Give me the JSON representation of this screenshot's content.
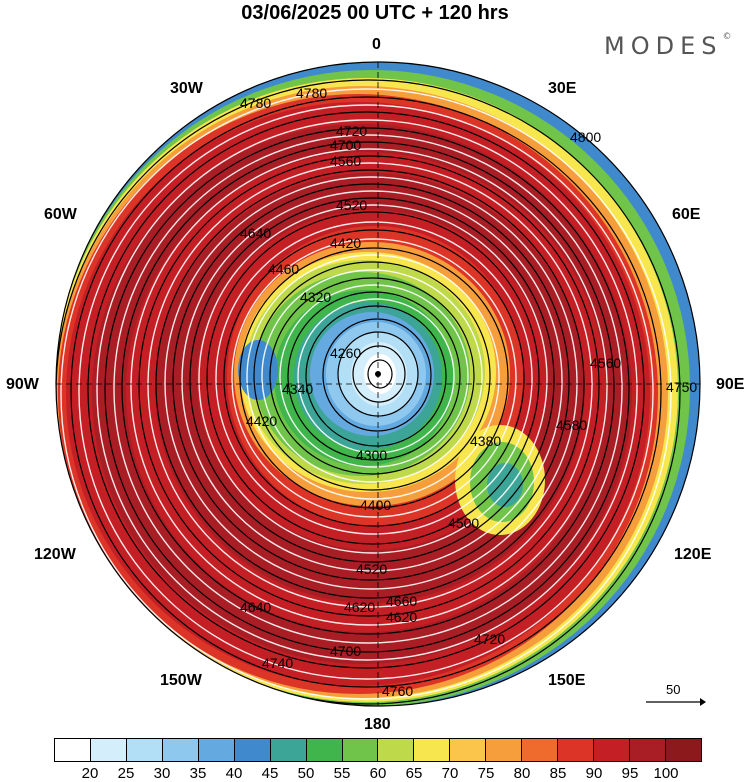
{
  "title": "03/06/2025  00 UTC  + 120 hrs",
  "brand": "MODES",
  "brand_mark": "©",
  "longitude_labels": {
    "n": "0",
    "e30": "30E",
    "e60": "60E",
    "e90": "90E",
    "e120": "120E",
    "e150": "150E",
    "s": "180",
    "w150": "150W",
    "w120": "120W",
    "w90": "90W",
    "w60": "60W",
    "w30": "30W"
  },
  "contour_labels": [
    "4780",
    "4780",
    "4720",
    "4700",
    "4640",
    "4620",
    "4560",
    "4520",
    "4460",
    "4420",
    "4380",
    "4320",
    "4260",
    "4300",
    "4340",
    "4400",
    "4420",
    "4500",
    "4520",
    "4560",
    "4580",
    "4620",
    "4640",
    "4660",
    "4700",
    "4720",
    "4740",
    "4750",
    "4760",
    "4800"
  ],
  "reference_vector": {
    "value": "50"
  },
  "colorbar": {
    "ticks": [
      "20",
      "25",
      "30",
      "35",
      "40",
      "45",
      "50",
      "55",
      "60",
      "65",
      "70",
      "75",
      "80",
      "85",
      "90",
      "95",
      "100"
    ],
    "colors": [
      "#ffffff",
      "#d4eefb",
      "#b3dff6",
      "#8ec8ee",
      "#64a9df",
      "#3f89cc",
      "#3ca597",
      "#3fb54b",
      "#6fc449",
      "#bed94a",
      "#f8e64e",
      "#fbc44a",
      "#f79e3c",
      "#ee6b2d",
      "#dc3527",
      "#c51f26",
      "#a91d24",
      "#8c1a1d"
    ]
  }
}
